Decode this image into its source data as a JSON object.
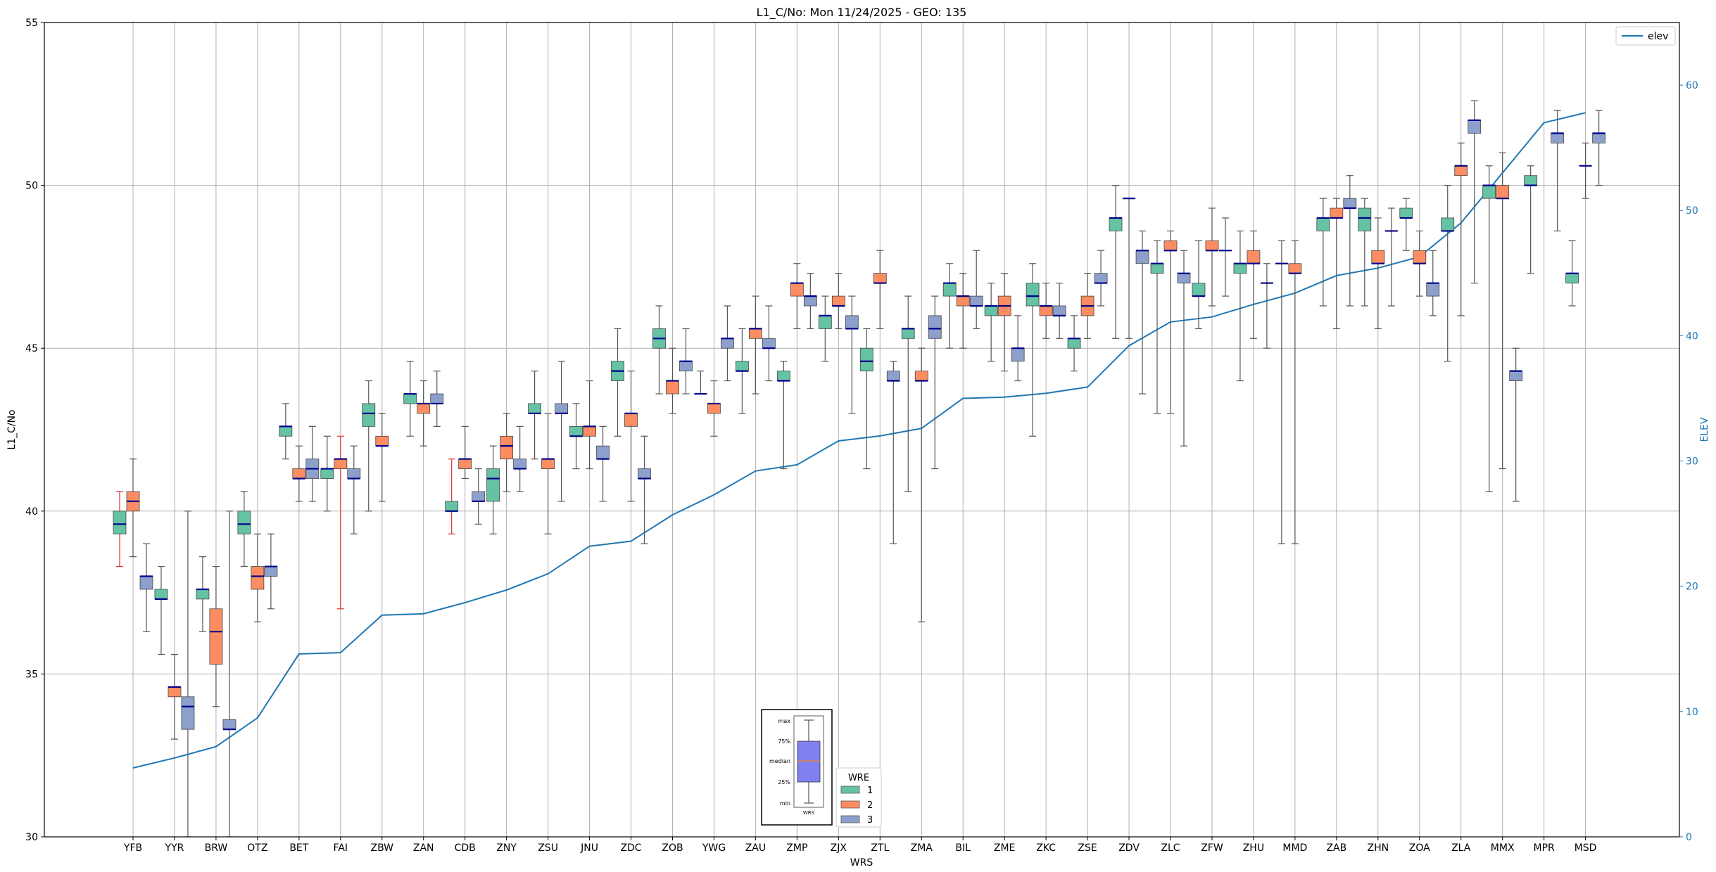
{
  "chart_data": {
    "type": "box",
    "title": "L1_C/No: Mon 11/24/2025 - GEO: 135",
    "xlabel": "WRS",
    "ylabel": "L1_C/No",
    "ylabel_right": "ELEV",
    "ylim": [
      30,
      55
    ],
    "ylim_right": [
      0,
      65
    ],
    "yticks": [
      "30",
      "35",
      "40",
      "45",
      "50",
      "55"
    ],
    "yticks_right": [
      "0",
      "10",
      "20",
      "30",
      "40",
      "50",
      "60"
    ],
    "grid": true,
    "categories": [
      "YFB",
      "YYR",
      "BRW",
      "OTZ",
      "BET",
      "FAI",
      "ZBW",
      "ZAN",
      "CDB",
      "ZNY",
      "ZSU",
      "JNU",
      "ZDC",
      "ZOB",
      "YWG",
      "ZAU",
      "ZMP",
      "ZJX",
      "ZTL",
      "ZMA",
      "BIL",
      "ZME",
      "ZKC",
      "ZSE",
      "ZDV",
      "ZLC",
      "ZFW",
      "ZHU",
      "MMD",
      "ZAB",
      "ZHN",
      "ZOA",
      "ZLA",
      "MMX",
      "MPR",
      "MSD"
    ],
    "legend": {
      "title": "WRE",
      "entries": [
        {
          "label": "1",
          "color": "#66c2a5"
        },
        {
          "label": "2",
          "color": "#fc8d62"
        },
        {
          "label": "3",
          "color": "#8da0cb"
        }
      ]
    },
    "line_legend": {
      "label": "elev",
      "color": "#1f77b4"
    },
    "elevation": [
      5.5,
      6.3,
      7.2,
      9.5,
      14.6,
      14.7,
      17.7,
      17.8,
      18.7,
      19.7,
      21.0,
      23.2,
      23.6,
      25.7,
      27.3,
      29.2,
      29.7,
      31.6,
      32.0,
      32.6,
      35.0,
      35.1,
      35.4,
      35.9,
      39.2,
      41.1,
      41.5,
      42.5,
      43.4,
      44.8,
      45.4,
      46.3,
      49.0,
      53.0,
      57.0,
      57.8
    ],
    "boxes": [
      {
        "site": "YFB",
        "wre": 1,
        "min": 38.3,
        "q1": 39.3,
        "median": 39.6,
        "q3": 40.0,
        "max": 40.6
      },
      {
        "site": "YFB",
        "wre": 2,
        "min": 38.6,
        "q1": 40.0,
        "median": 40.3,
        "q3": 40.6,
        "max": 41.6
      },
      {
        "site": "YFB",
        "wre": 3,
        "min": 36.3,
        "q1": 37.6,
        "median": 38.0,
        "q3": 38.0,
        "max": 39.0
      },
      {
        "site": "YYR",
        "wre": 1,
        "min": 35.6,
        "q1": 37.3,
        "median": 37.3,
        "q3": 37.6,
        "max": 38.3
      },
      {
        "site": "YYR",
        "wre": 2,
        "min": 33.0,
        "q1": 34.3,
        "median": 34.6,
        "q3": 34.6,
        "max": 35.6
      },
      {
        "site": "YYR",
        "wre": 3,
        "min": 30.0,
        "q1": 33.3,
        "median": 34.0,
        "q3": 34.3,
        "max": 40.0
      },
      {
        "site": "BRW",
        "wre": 1,
        "min": 36.3,
        "q1": 37.3,
        "median": 37.6,
        "q3": 37.6,
        "max": 38.6
      },
      {
        "site": "BRW",
        "wre": 2,
        "min": 34.0,
        "q1": 35.3,
        "median": 36.3,
        "q3": 37.0,
        "max": 38.3
      },
      {
        "site": "BRW",
        "wre": 3,
        "min": 30.0,
        "q1": 33.3,
        "median": 33.3,
        "q3": 33.6,
        "max": 40.0
      },
      {
        "site": "OTZ",
        "wre": 1,
        "min": 38.3,
        "q1": 39.3,
        "median": 39.6,
        "q3": 40.0,
        "max": 40.6
      },
      {
        "site": "OTZ",
        "wre": 2,
        "min": 36.6,
        "q1": 37.6,
        "median": 38.0,
        "q3": 38.3,
        "max": 39.3
      },
      {
        "site": "OTZ",
        "wre": 3,
        "min": 37.0,
        "q1": 38.0,
        "median": 38.3,
        "q3": 38.3,
        "max": 39.3
      },
      {
        "site": "BET",
        "wre": 1,
        "min": 41.6,
        "q1": 42.3,
        "median": 42.6,
        "q3": 42.6,
        "max": 43.3
      },
      {
        "site": "BET",
        "wre": 2,
        "min": 40.3,
        "q1": 41.0,
        "median": 41.0,
        "q3": 41.3,
        "max": 42.0
      },
      {
        "site": "BET",
        "wre": 3,
        "min": 40.3,
        "q1": 41.0,
        "median": 41.3,
        "q3": 41.6,
        "max": 42.6
      },
      {
        "site": "FAI",
        "wre": 1,
        "min": 40.0,
        "q1": 41.0,
        "median": 41.3,
        "q3": 41.3,
        "max": 42.3
      },
      {
        "site": "FAI",
        "wre": 2,
        "min": 37.0,
        "q1": 41.3,
        "median": 41.6,
        "q3": 41.6,
        "max": 42.3
      },
      {
        "site": "FAI",
        "wre": 3,
        "min": 39.3,
        "q1": 41.0,
        "median": 41.0,
        "q3": 41.3,
        "max": 42.0
      },
      {
        "site": "ZBW",
        "wre": 1,
        "min": 40.0,
        "q1": 42.6,
        "median": 43.0,
        "q3": 43.3,
        "max": 44.0
      },
      {
        "site": "ZBW",
        "wre": 2,
        "min": 40.3,
        "q1": 42.0,
        "median": 42.0,
        "q3": 42.3,
        "max": 43.0
      },
      {
        "site": "ZAN",
        "wre": 1,
        "min": 42.3,
        "q1": 43.3,
        "median": 43.6,
        "q3": 43.6,
        "max": 44.6
      },
      {
        "site": "ZAN",
        "wre": 2,
        "min": 42.0,
        "q1": 43.0,
        "median": 43.3,
        "q3": 43.3,
        "max": 44.0
      },
      {
        "site": "ZAN",
        "wre": 3,
        "min": 42.6,
        "q1": 43.3,
        "median": 43.3,
        "q3": 43.6,
        "max": 44.3
      },
      {
        "site": "CDB",
        "wre": 1,
        "min": 39.3,
        "q1": 40.0,
        "median": 40.0,
        "q3": 40.3,
        "max": 41.6
      },
      {
        "site": "CDB",
        "wre": 2,
        "min": 41.0,
        "q1": 41.3,
        "median": 41.6,
        "q3": 41.6,
        "max": 42.6
      },
      {
        "site": "CDB",
        "wre": 3,
        "min": 39.6,
        "q1": 40.3,
        "median": 40.3,
        "q3": 40.6,
        "max": 41.3
      },
      {
        "site": "ZNY",
        "wre": 1,
        "min": 39.3,
        "q1": 40.3,
        "median": 41.0,
        "q3": 41.3,
        "max": 42.0
      },
      {
        "site": "ZNY",
        "wre": 2,
        "min": 40.6,
        "q1": 41.6,
        "median": 42.0,
        "q3": 42.3,
        "max": 43.0
      },
      {
        "site": "ZNY",
        "wre": 3,
        "min": 40.6,
        "q1": 41.3,
        "median": 41.3,
        "q3": 41.6,
        "max": 42.6
      },
      {
        "site": "ZSU",
        "wre": 1,
        "min": 41.6,
        "q1": 43.0,
        "median": 43.0,
        "q3": 43.3,
        "max": 44.3
      },
      {
        "site": "ZSU",
        "wre": 2,
        "min": 39.3,
        "q1": 41.3,
        "median": 41.6,
        "q3": 41.6,
        "max": 43.0
      },
      {
        "site": "ZSU",
        "wre": 3,
        "min": 40.3,
        "q1": 43.0,
        "median": 43.0,
        "q3": 43.3,
        "max": 44.6
      },
      {
        "site": "JNU",
        "wre": 1,
        "min": 41.3,
        "q1": 42.3,
        "median": 42.3,
        "q3": 42.6,
        "max": 43.3
      },
      {
        "site": "JNU",
        "wre": 2,
        "min": 41.3,
        "q1": 42.3,
        "median": 42.6,
        "q3": 42.6,
        "max": 44.0
      },
      {
        "site": "JNU",
        "wre": 3,
        "min": 40.3,
        "q1": 41.6,
        "median": 41.6,
        "q3": 42.0,
        "max": 42.6
      },
      {
        "site": "ZDC",
        "wre": 1,
        "min": 42.3,
        "q1": 44.0,
        "median": 44.3,
        "q3": 44.6,
        "max": 45.6
      },
      {
        "site": "ZDC",
        "wre": 2,
        "min": 40.3,
        "q1": 42.6,
        "median": 43.0,
        "q3": 43.0,
        "max": 44.3
      },
      {
        "site": "ZDC",
        "wre": 3,
        "min": 39.0,
        "q1": 41.0,
        "median": 41.0,
        "q3": 41.3,
        "max": 42.3
      },
      {
        "site": "ZOB",
        "wre": 1,
        "min": 43.6,
        "q1": 45.0,
        "median": 45.3,
        "q3": 45.6,
        "max": 46.3
      },
      {
        "site": "ZOB",
        "wre": 2,
        "min": 43.0,
        "q1": 43.6,
        "median": 44.0,
        "q3": 44.0,
        "max": 45.0
      },
      {
        "site": "ZOB",
        "wre": 3,
        "min": 43.6,
        "q1": 44.3,
        "median": 44.6,
        "q3": 44.6,
        "max": 45.6
      },
      {
        "site": "YWG",
        "wre": 1,
        "min": 43.6,
        "q1": 43.6,
        "median": 43.6,
        "q3": 43.6,
        "max": 44.3
      },
      {
        "site": "YWG",
        "wre": 2,
        "min": 42.3,
        "q1": 43.0,
        "median": 43.3,
        "q3": 43.3,
        "max": 44.0
      },
      {
        "site": "YWG",
        "wre": 3,
        "min": 44.0,
        "q1": 45.0,
        "median": 45.3,
        "q3": 45.3,
        "max": 46.3
      },
      {
        "site": "ZAU",
        "wre": 1,
        "min": 43.0,
        "q1": 44.3,
        "median": 44.3,
        "q3": 44.6,
        "max": 45.6
      },
      {
        "site": "ZAU",
        "wre": 2,
        "min": 43.6,
        "q1": 45.3,
        "median": 45.6,
        "q3": 45.6,
        "max": 46.6
      },
      {
        "site": "ZAU",
        "wre": 3,
        "min": 44.0,
        "q1": 45.0,
        "median": 45.0,
        "q3": 45.3,
        "max": 46.3
      },
      {
        "site": "ZMP",
        "wre": 1,
        "min": 41.3,
        "q1": 44.0,
        "median": 44.0,
        "q3": 44.3,
        "max": 44.6
      },
      {
        "site": "ZMP",
        "wre": 2,
        "min": 45.6,
        "q1": 46.6,
        "median": 47.0,
        "q3": 47.0,
        "max": 47.6
      },
      {
        "site": "ZMP",
        "wre": 3,
        "min": 45.6,
        "q1": 46.3,
        "median": 46.6,
        "q3": 46.6,
        "max": 47.3
      },
      {
        "site": "ZJX",
        "wre": 1,
        "min": 44.6,
        "q1": 45.6,
        "median": 46.0,
        "q3": 46.0,
        "max": 46.6
      },
      {
        "site": "ZJX",
        "wre": 2,
        "min": 45.6,
        "q1": 46.3,
        "median": 46.3,
        "q3": 46.6,
        "max": 47.3
      },
      {
        "site": "ZJX",
        "wre": 3,
        "min": 43.0,
        "q1": 45.6,
        "median": 45.6,
        "q3": 46.0,
        "max": 46.6
      },
      {
        "site": "ZTL",
        "wre": 1,
        "min": 41.3,
        "q1": 44.3,
        "median": 44.6,
        "q3": 45.0,
        "max": 45.6
      },
      {
        "site": "ZTL",
        "wre": 2,
        "min": 45.6,
        "q1": 47.0,
        "median": 47.0,
        "q3": 47.3,
        "max": 48.0
      },
      {
        "site": "ZTL",
        "wre": 3,
        "min": 39.0,
        "q1": 44.0,
        "median": 44.0,
        "q3": 44.3,
        "max": 44.6
      },
      {
        "site": "ZMA",
        "wre": 1,
        "min": 40.6,
        "q1": 45.3,
        "median": 45.6,
        "q3": 45.6,
        "max": 46.6
      },
      {
        "site": "ZMA",
        "wre": 2,
        "min": 36.6,
        "q1": 44.0,
        "median": 44.0,
        "q3": 44.3,
        "max": 45.0
      },
      {
        "site": "ZMA",
        "wre": 3,
        "min": 41.3,
        "q1": 45.3,
        "median": 45.6,
        "q3": 46.0,
        "max": 46.6
      },
      {
        "site": "BIL",
        "wre": 1,
        "min": 45.0,
        "q1": 46.6,
        "median": 47.0,
        "q3": 47.0,
        "max": 47.6
      },
      {
        "site": "BIL",
        "wre": 2,
        "min": 45.0,
        "q1": 46.3,
        "median": 46.6,
        "q3": 46.6,
        "max": 47.3
      },
      {
        "site": "BIL",
        "wre": 3,
        "min": 45.6,
        "q1": 46.3,
        "median": 46.3,
        "q3": 46.6,
        "max": 48.0
      },
      {
        "site": "ZME",
        "wre": 1,
        "min": 44.6,
        "q1": 46.0,
        "median": 46.3,
        "q3": 46.3,
        "max": 47.0
      },
      {
        "site": "ZME",
        "wre": 2,
        "min": 44.3,
        "q1": 46.0,
        "median": 46.3,
        "q3": 46.6,
        "max": 47.3
      },
      {
        "site": "ZME",
        "wre": 3,
        "min": 44.0,
        "q1": 44.6,
        "median": 45.0,
        "q3": 45.0,
        "max": 46.0
      },
      {
        "site": "ZKC",
        "wre": 1,
        "min": 42.3,
        "q1": 46.3,
        "median": 46.6,
        "q3": 47.0,
        "max": 47.6
      },
      {
        "site": "ZKC",
        "wre": 2,
        "min": 45.3,
        "q1": 46.0,
        "median": 46.3,
        "q3": 46.3,
        "max": 47.0
      },
      {
        "site": "ZKC",
        "wre": 3,
        "min": 45.3,
        "q1": 46.0,
        "median": 46.0,
        "q3": 46.3,
        "max": 47.0
      },
      {
        "site": "ZSE",
        "wre": 1,
        "min": 44.3,
        "q1": 45.0,
        "median": 45.3,
        "q3": 45.3,
        "max": 46.0
      },
      {
        "site": "ZSE",
        "wre": 2,
        "min": 45.3,
        "q1": 46.0,
        "median": 46.3,
        "q3": 46.6,
        "max": 47.3
      },
      {
        "site": "ZSE",
        "wre": 3,
        "min": 46.3,
        "q1": 47.0,
        "median": 47.0,
        "q3": 47.3,
        "max": 48.0
      },
      {
        "site": "ZDV",
        "wre": 1,
        "min": 45.3,
        "q1": 48.6,
        "median": 49.0,
        "q3": 49.0,
        "max": 50.0
      },
      {
        "site": "ZDV",
        "wre": 2,
        "min": 45.3,
        "q1": 49.6,
        "median": 49.6,
        "q3": 49.6,
        "max": 49.6
      },
      {
        "site": "ZDV",
        "wre": 3,
        "min": 43.6,
        "q1": 47.6,
        "median": 48.0,
        "q3": 48.0,
        "max": 48.6
      },
      {
        "site": "ZLC",
        "wre": 1,
        "min": 43.0,
        "q1": 47.3,
        "median": 47.6,
        "q3": 47.6,
        "max": 48.3
      },
      {
        "site": "ZLC",
        "wre": 2,
        "min": 43.0,
        "q1": 48.0,
        "median": 48.0,
        "q3": 48.3,
        "max": 48.6
      },
      {
        "site": "ZLC",
        "wre": 3,
        "min": 42.0,
        "q1": 47.0,
        "median": 47.3,
        "q3": 47.3,
        "max": 48.0
      },
      {
        "site": "ZFW",
        "wre": 1,
        "min": 45.6,
        "q1": 46.6,
        "median": 46.6,
        "q3": 47.0,
        "max": 48.3
      },
      {
        "site": "ZFW",
        "wre": 2,
        "min": 46.3,
        "q1": 48.0,
        "median": 48.0,
        "q3": 48.3,
        "max": 49.3
      },
      {
        "site": "ZFW",
        "wre": 3,
        "min": 46.6,
        "q1": 48.0,
        "median": 48.0,
        "q3": 48.0,
        "max": 49.0
      },
      {
        "site": "ZHU",
        "wre": 1,
        "min": 44.0,
        "q1": 47.3,
        "median": 47.6,
        "q3": 47.6,
        "max": 48.6
      },
      {
        "site": "ZHU",
        "wre": 2,
        "min": 45.3,
        "q1": 47.6,
        "median": 47.6,
        "q3": 48.0,
        "max": 48.6
      },
      {
        "site": "ZHU",
        "wre": 3,
        "min": 45.0,
        "q1": 47.0,
        "median": 47.0,
        "q3": 47.0,
        "max": 47.6
      },
      {
        "site": "MMD",
        "wre": 1,
        "min": 39.0,
        "q1": 47.6,
        "median": 47.6,
        "q3": 47.6,
        "max": 48.3
      },
      {
        "site": "MMD",
        "wre": 2,
        "min": 39.0,
        "q1": 47.3,
        "median": 47.3,
        "q3": 47.6,
        "max": 48.3
      },
      {
        "site": "ZAB",
        "wre": 1,
        "min": 46.3,
        "q1": 48.6,
        "median": 49.0,
        "q3": 49.0,
        "max": 49.6
      },
      {
        "site": "ZAB",
        "wre": 2,
        "min": 45.6,
        "q1": 49.0,
        "median": 49.0,
        "q3": 49.3,
        "max": 49.6
      },
      {
        "site": "ZAB",
        "wre": 3,
        "min": 46.3,
        "q1": 49.3,
        "median": 49.3,
        "q3": 49.6,
        "max": 50.3
      },
      {
        "site": "ZHN",
        "wre": 1,
        "min": 46.3,
        "q1": 48.6,
        "median": 49.0,
        "q3": 49.3,
        "max": 49.6
      },
      {
        "site": "ZHN",
        "wre": 2,
        "min": 45.6,
        "q1": 47.6,
        "median": 47.6,
        "q3": 48.0,
        "max": 49.0
      },
      {
        "site": "ZHN",
        "wre": 3,
        "min": 46.3,
        "q1": 48.6,
        "median": 48.6,
        "q3": 48.6,
        "max": 49.3
      },
      {
        "site": "ZOA",
        "wre": 1,
        "min": 48.0,
        "q1": 49.0,
        "median": 49.0,
        "q3": 49.3,
        "max": 49.6
      },
      {
        "site": "ZOA",
        "wre": 2,
        "min": 46.6,
        "q1": 47.6,
        "median": 47.6,
        "q3": 48.0,
        "max": 48.6
      },
      {
        "site": "ZOA",
        "wre": 3,
        "min": 46.0,
        "q1": 46.6,
        "median": 47.0,
        "q3": 47.0,
        "max": 48.0
      },
      {
        "site": "ZLA",
        "wre": 1,
        "min": 44.6,
        "q1": 48.6,
        "median": 48.6,
        "q3": 49.0,
        "max": 50.0
      },
      {
        "site": "ZLA",
        "wre": 2,
        "min": 46.0,
        "q1": 50.3,
        "median": 50.6,
        "q3": 50.6,
        "max": 51.3
      },
      {
        "site": "ZLA",
        "wre": 3,
        "min": 47.0,
        "q1": 51.6,
        "median": 52.0,
        "q3": 52.0,
        "max": 52.6
      },
      {
        "site": "MMX",
        "wre": 1,
        "min": 40.6,
        "q1": 49.6,
        "median": 50.0,
        "q3": 50.0,
        "max": 50.6
      },
      {
        "site": "MMX",
        "wre": 2,
        "min": 41.3,
        "q1": 49.6,
        "median": 49.6,
        "q3": 50.0,
        "max": 51.0
      },
      {
        "site": "MMX",
        "wre": 3,
        "min": 40.3,
        "q1": 44.0,
        "median": 44.3,
        "q3": 44.3,
        "max": 45.0
      },
      {
        "site": "MPR",
        "wre": 1,
        "min": 47.3,
        "q1": 50.0,
        "median": 50.0,
        "q3": 50.3,
        "max": 50.6
      },
      {
        "site": "MPR",
        "wre": 3,
        "min": 48.6,
        "q1": 51.3,
        "median": 51.6,
        "q3": 51.6,
        "max": 52.3
      },
      {
        "site": "MSD",
        "wre": 1,
        "min": 46.3,
        "q1": 47.0,
        "median": 47.3,
        "q3": 47.3,
        "max": 48.3
      },
      {
        "site": "MSD",
        "wre": 2,
        "min": 49.6,
        "q1": 50.6,
        "median": 50.6,
        "q3": 50.6,
        "max": 51.3
      },
      {
        "site": "MSD",
        "wre": 3,
        "min": 50.0,
        "q1": 51.3,
        "median": 51.6,
        "q3": 51.6,
        "max": 52.3
      }
    ],
    "red_whiskers": [
      "YFB-1",
      "FAI-2",
      "CDB-1"
    ],
    "key_inset": {
      "labels": [
        "max",
        "75%",
        "median",
        "25%",
        "min"
      ],
      "caption": "WRS"
    }
  }
}
